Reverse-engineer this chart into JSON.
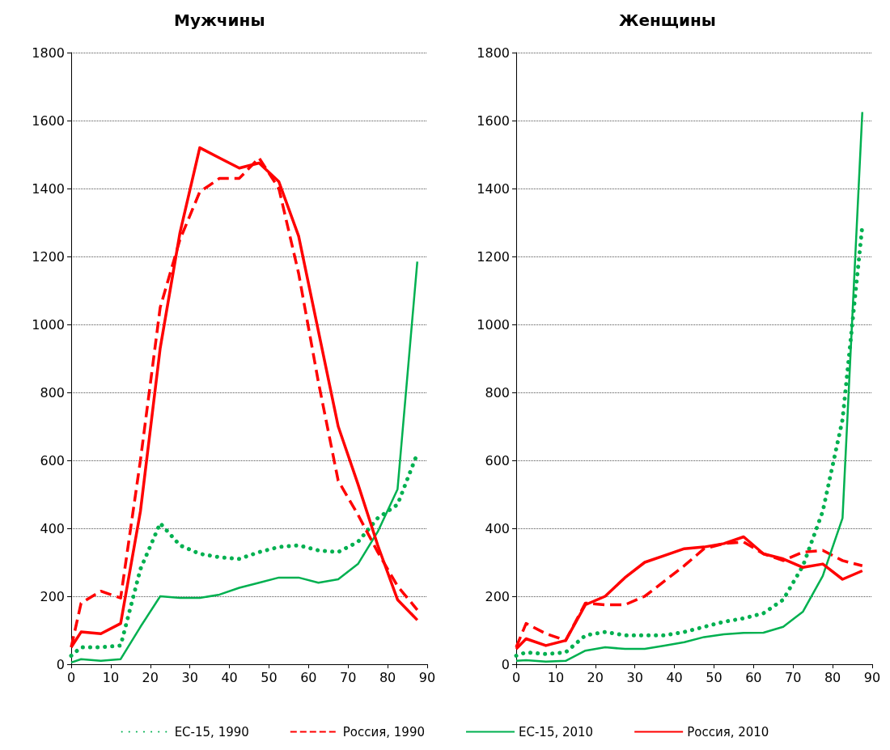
{
  "chart_data": [
    {
      "type": "line",
      "title": "Мужчины",
      "x": [
        0,
        2.5,
        7.5,
        12.5,
        17.5,
        22.5,
        27.5,
        32.5,
        37.5,
        42.5,
        47.5,
        52.5,
        57.5,
        62.5,
        67.5,
        72.5,
        77.5,
        82.5,
        87.5
      ],
      "xlim": [
        0,
        90
      ],
      "xticks": [
        0,
        10,
        20,
        30,
        40,
        50,
        60,
        70,
        80,
        90
      ],
      "ylim": [
        0,
        1800
      ],
      "yticks": [
        0,
        200,
        400,
        600,
        800,
        1000,
        1200,
        1400,
        1600,
        1800
      ],
      "grid": "y",
      "legend": "bottom",
      "marker": "none",
      "series": [
        {
          "name": "ЕС-15, 1990",
          "color": "#00b050",
          "line_style": "dotted",
          "values": [
            25,
            50,
            50,
            55,
            280,
            415,
            350,
            325,
            315,
            310,
            330,
            345,
            350,
            335,
            330,
            360,
            430,
            470,
            620
          ]
        },
        {
          "name": "Россия, 1990",
          "color": "#ff0000",
          "line_style": "dashed",
          "values": [
            50,
            180,
            215,
            195,
            600,
            1050,
            1250,
            1390,
            1430,
            1430,
            1490,
            1400,
            1150,
            830,
            540,
            440,
            330,
            230,
            160
          ]
        },
        {
          "name": "ЕС-15, 2010",
          "color": "#00b050",
          "line_style": "solid",
          "values": [
            5,
            15,
            10,
            15,
            110,
            200,
            195,
            195,
            205,
            225,
            240,
            255,
            255,
            240,
            250,
            295,
            390,
            515,
            1185
          ]
        },
        {
          "name": "Россия, 2010",
          "color": "#ff0000",
          "line_style": "solid",
          "values": [
            50,
            95,
            90,
            120,
            450,
            930,
            1270,
            1520,
            1490,
            1460,
            1475,
            1420,
            1260,
            980,
            700,
            530,
            350,
            190,
            130
          ]
        }
      ]
    },
    {
      "type": "line",
      "title": "Женщины",
      "x": [
        0,
        2.5,
        7.5,
        12.5,
        17.5,
        22.5,
        27.5,
        32.5,
        37.5,
        42.5,
        47.5,
        52.5,
        57.5,
        62.5,
        67.5,
        72.5,
        77.5,
        82.5,
        87.5
      ],
      "xlim": [
        0,
        90
      ],
      "xticks": [
        0,
        10,
        20,
        30,
        40,
        50,
        60,
        70,
        80,
        90
      ],
      "ylim": [
        0,
        1800
      ],
      "yticks": [
        0,
        200,
        400,
        600,
        800,
        1000,
        1200,
        1400,
        1600,
        1800
      ],
      "grid": "y",
      "marker": "none",
      "series": [
        {
          "color": "#00b050",
          "line_style": "dotted",
          "values": [
            25,
            35,
            30,
            35,
            85,
            95,
            85,
            85,
            85,
            95,
            110,
            125,
            135,
            150,
            190,
            290,
            450,
            720,
            1290
          ]
        },
        {
          "color": "#ff0000",
          "line_style": "dashed",
          "values": [
            50,
            120,
            90,
            70,
            180,
            175,
            175,
            200,
            245,
            290,
            340,
            355,
            360,
            325,
            305,
            330,
            335,
            305,
            290
          ]
        },
        {
          "color": "#00b050",
          "line_style": "solid",
          "values": [
            10,
            12,
            8,
            10,
            40,
            50,
            45,
            45,
            55,
            65,
            80,
            88,
            92,
            93,
            110,
            155,
            260,
            430,
            1625
          ]
        },
        {
          "color": "#ff0000",
          "line_style": "solid",
          "values": [
            45,
            75,
            55,
            70,
            175,
            200,
            255,
            300,
            320,
            340,
            345,
            355,
            375,
            325,
            310,
            285,
            295,
            250,
            275
          ]
        }
      ]
    }
  ]
}
